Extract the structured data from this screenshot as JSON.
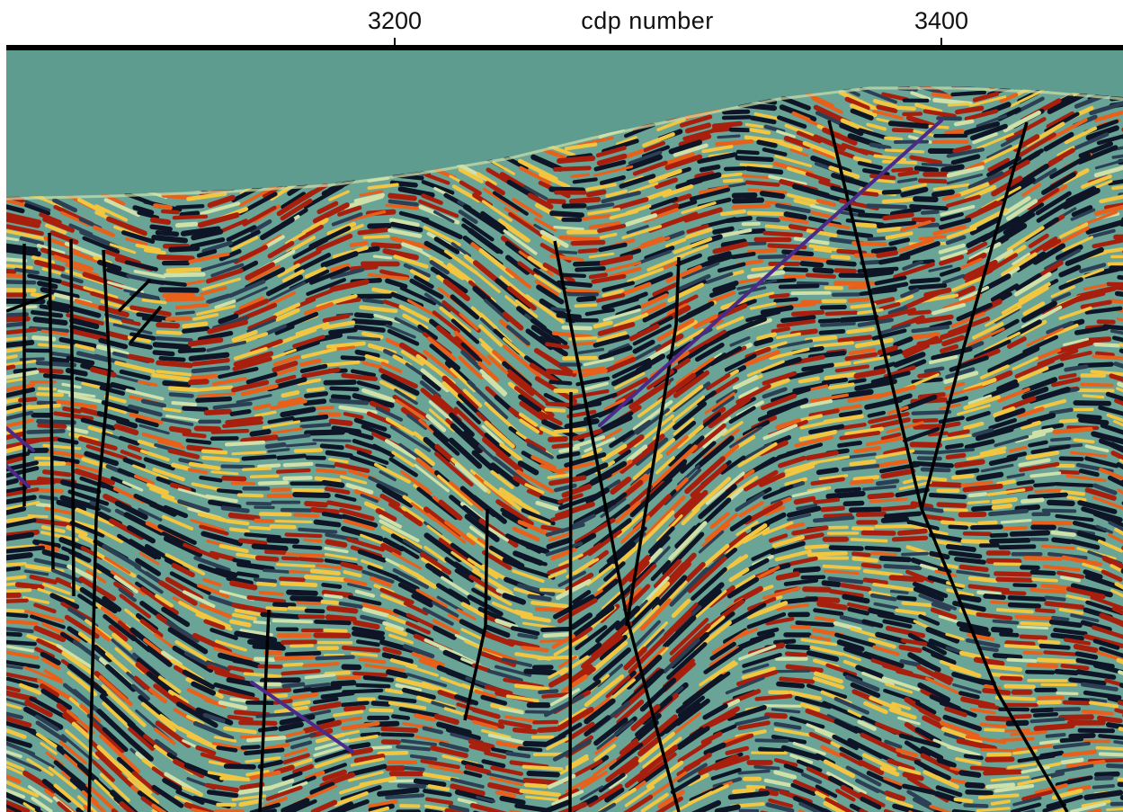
{
  "axis": {
    "title": "cdp number",
    "ticks": [
      {
        "label": "3200",
        "value": 3200
      },
      {
        "label": "3400",
        "value": 3400
      }
    ]
  },
  "colors": {
    "water": "#5e9c8f",
    "background": "#6aa496",
    "trough": "#0d1526",
    "trough_light": "#2b3f55",
    "peak_red": "#a8200d",
    "peak_orange": "#e8601a",
    "peak_yellow": "#f2c640",
    "pale": "#cfe0a8",
    "fault_black": "#000000",
    "horizon_purple": "#4b2a8a"
  },
  "section": {
    "type": "seismic-section",
    "colormap": "yellow-red-black on teal",
    "interpretation": {
      "fault_count": 14,
      "horizon_count": 4
    }
  }
}
